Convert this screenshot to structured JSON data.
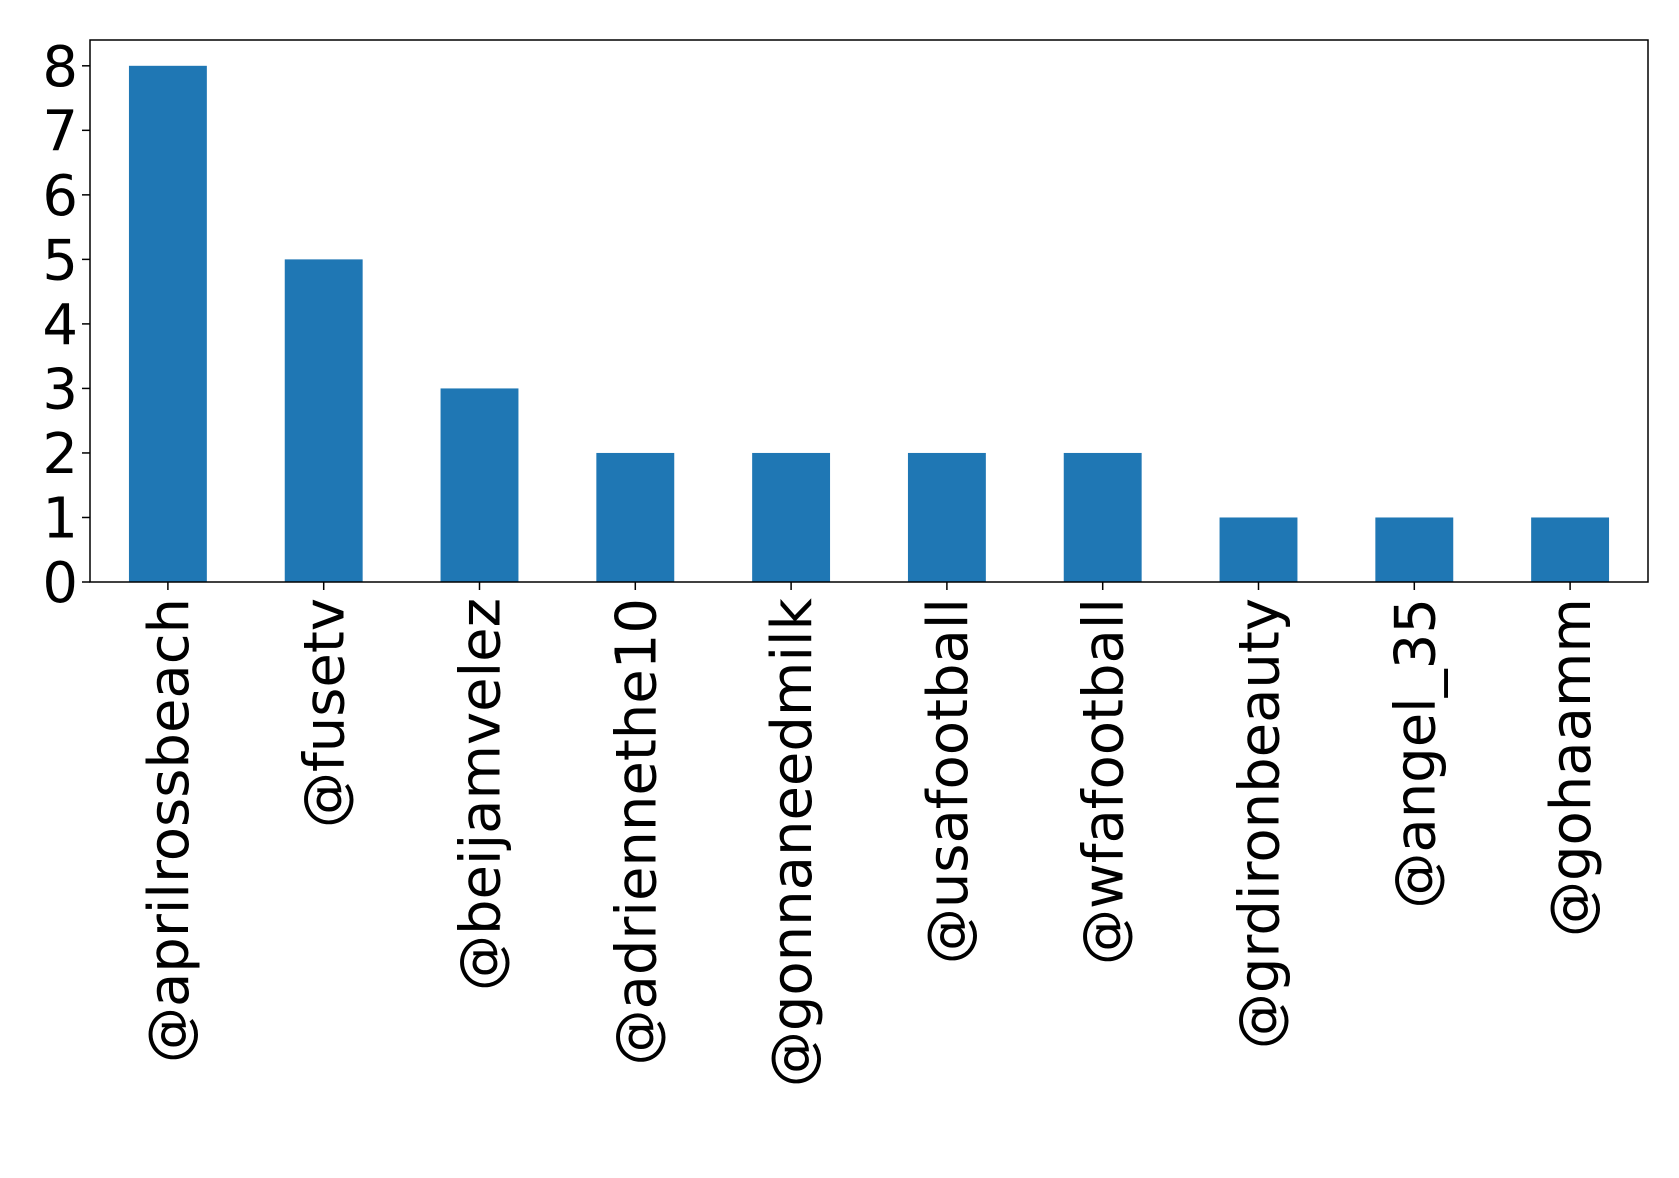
{
  "chart_data": {
    "type": "bar",
    "title": "",
    "xlabel": "",
    "ylabel": "",
    "categories": [
      "@aprilrossbeach",
      "@fusetv",
      "@beijamvelez",
      "@adriennethe10",
      "@gonnaneedmilk",
      "@usafootball",
      "@wfafootball",
      "@grdironbeauty",
      "@angel_35",
      "@gohaamm"
    ],
    "values": [
      8,
      5,
      3,
      2,
      2,
      2,
      2,
      1,
      1,
      1
    ],
    "ylim": [
      0,
      8.4
    ],
    "yticks": [
      0,
      1,
      2,
      3,
      4,
      5,
      6,
      7,
      8
    ],
    "bar_color": "#1f77b4",
    "grid": false,
    "legend": "none"
  }
}
